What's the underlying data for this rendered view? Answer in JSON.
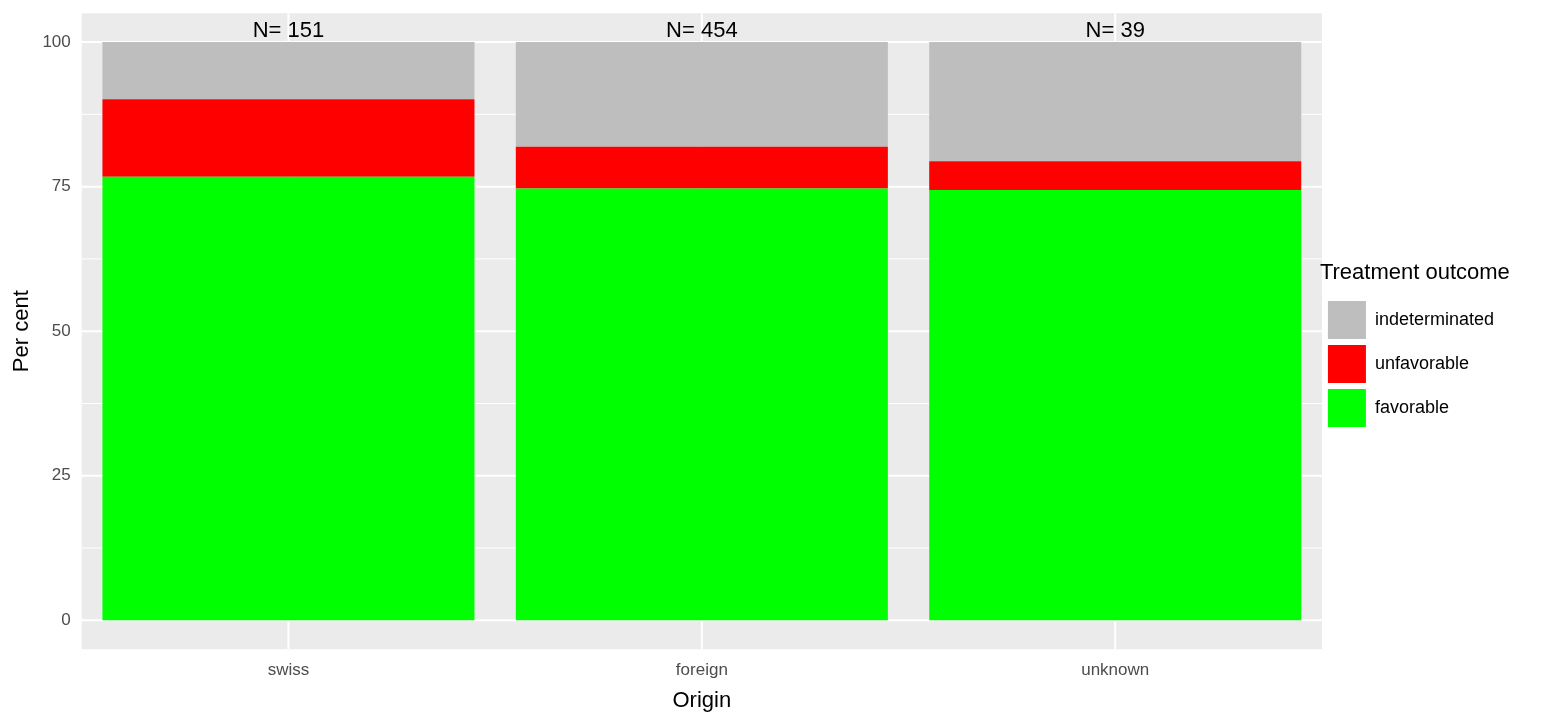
{
  "chart_data": {
    "type": "bar",
    "stacked": true,
    "xlabel": "Origin",
    "ylabel": "Per cent",
    "legend_title": "Treatment outcome",
    "categories": [
      "swiss",
      "foreign",
      "unknown"
    ],
    "series": [
      {
        "name": "favorable",
        "color": "#00ff00",
        "values": [
          76.7,
          74.7,
          74.4
        ]
      },
      {
        "name": "unfavorable",
        "color": "#ff0000",
        "values": [
          13.4,
          7.2,
          5.0
        ]
      },
      {
        "name": "indeterminated",
        "color": "#bebebe",
        "values": [
          9.9,
          18.1,
          20.6
        ]
      }
    ],
    "ylim": [
      -5,
      105
    ],
    "yticks": [
      0,
      25,
      50,
      75,
      100
    ],
    "grid": true,
    "legend": "right",
    "annotations": [
      "N= 151",
      "N= 454",
      "N= 39"
    ]
  }
}
